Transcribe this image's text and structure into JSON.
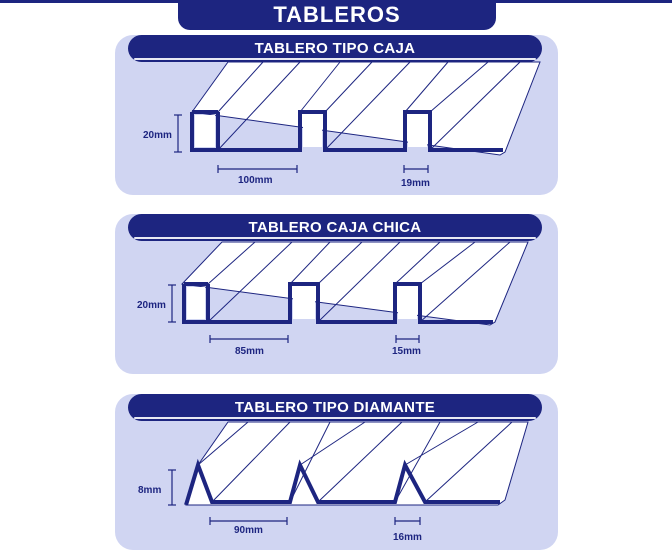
{
  "title": "TABLEROS",
  "panels": [
    {
      "heading": "TABLERO TIPO CAJA",
      "height_label": "20mm",
      "width_label": "100mm",
      "gap_label": "19mm"
    },
    {
      "heading": "TABLERO CAJA CHICA",
      "height_label": "20mm",
      "width_label": "85mm",
      "gap_label": "15mm"
    },
    {
      "heading": "TABLERO TIPO DIAMANTE",
      "height_label": "8mm",
      "width_label": "90mm",
      "gap_label": "16mm"
    }
  ],
  "colors": {
    "navy": "#1d2580",
    "panel": "#d0d5f2",
    "sheet": "#ffffff"
  }
}
